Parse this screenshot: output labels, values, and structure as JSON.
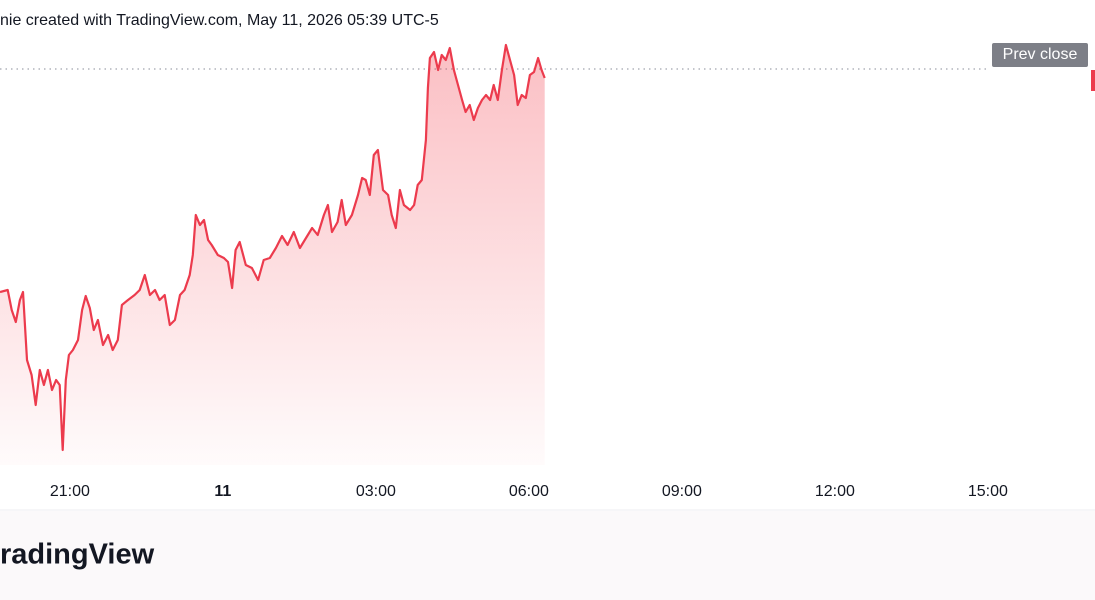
{
  "header": {
    "text": "nie created with TradingView.com, May 11, 2026 05:39 UTC-5"
  },
  "footer": {
    "logo": "radingView"
  },
  "chart_data": {
    "type": "area",
    "color": "#ec3b4d",
    "xlim": [
      19.63,
      41.1
    ],
    "ylim": [
      0,
      425
    ],
    "xticks": [
      {
        "value": 21,
        "label": "21:00"
      },
      {
        "value": 24,
        "label": "11"
      },
      {
        "value": 27,
        "label": "03:00"
      },
      {
        "value": 30,
        "label": "06:00"
      },
      {
        "value": 33,
        "label": "09:00"
      },
      {
        "value": 36,
        "label": "12:00"
      },
      {
        "value": 39,
        "label": "15:00"
      }
    ],
    "prev_close": {
      "label": "Prev close",
      "value": 396
    },
    "x": [
      19.63,
      19.78,
      19.86,
      19.94,
      20.02,
      20.08,
      20.16,
      20.25,
      20.33,
      20.41,
      20.49,
      20.57,
      20.65,
      20.73,
      20.8,
      20.86,
      20.92,
      20.98,
      21.06,
      21.16,
      21.24,
      21.31,
      21.39,
      21.47,
      21.55,
      21.65,
      21.75,
      21.84,
      21.94,
      22.02,
      22.14,
      22.27,
      22.37,
      22.47,
      22.57,
      22.67,
      22.76,
      22.86,
      22.96,
      23.06,
      23.16,
      23.25,
      23.35,
      23.41,
      23.47,
      23.55,
      23.63,
      23.71,
      23.78,
      23.9,
      24.02,
      24.1,
      24.18,
      24.25,
      24.33,
      24.45,
      24.57,
      24.69,
      24.8,
      24.92,
      25.04,
      25.16,
      25.27,
      25.39,
      25.51,
      25.63,
      25.75,
      25.86,
      25.98,
      26.06,
      26.14,
      26.25,
      26.33,
      26.41,
      26.53,
      26.65,
      26.73,
      26.8,
      26.88,
      26.96,
      27.04,
      27.14,
      27.24,
      27.31,
      27.39,
      27.47,
      27.55,
      27.67,
      27.75,
      27.82,
      27.9,
      27.98,
      28.02,
      28.06,
      28.14,
      28.22,
      28.29,
      28.37,
      28.45,
      28.53,
      28.61,
      28.69,
      28.76,
      28.84,
      28.92,
      29.0,
      29.08,
      29.16,
      29.24,
      29.31,
      29.39,
      29.47,
      29.55,
      29.63,
      29.71,
      29.78,
      29.86,
      29.94,
      30.02,
      30.1,
      30.18,
      30.25,
      30.31
    ],
    "values": [
      173,
      175,
      155,
      143,
      165,
      173,
      105,
      90,
      60,
      95,
      80,
      95,
      75,
      85,
      80,
      15,
      85,
      110,
      115,
      125,
      155,
      169,
      157,
      135,
      145,
      120,
      130,
      115,
      125,
      160,
      165,
      170,
      175,
      190,
      170,
      175,
      165,
      170,
      140,
      145,
      170,
      175,
      190,
      210,
      250,
      240,
      245,
      225,
      220,
      210,
      207,
      203,
      177,
      215,
      223,
      200,
      197,
      185,
      205,
      207,
      217,
      229,
      220,
      233,
      217,
      227,
      237,
      230,
      250,
      260,
      233,
      243,
      265,
      240,
      250,
      270,
      287,
      285,
      270,
      310,
      315,
      275,
      270,
      250,
      237,
      275,
      260,
      255,
      260,
      280,
      285,
      325,
      377,
      407,
      413,
      395,
      410,
      405,
      417,
      395,
      380,
      365,
      353,
      360,
      345,
      357,
      365,
      370,
      365,
      380,
      365,
      395,
      420,
      405,
      390,
      360,
      370,
      367,
      390,
      393,
      407,
      395,
      387
    ]
  }
}
